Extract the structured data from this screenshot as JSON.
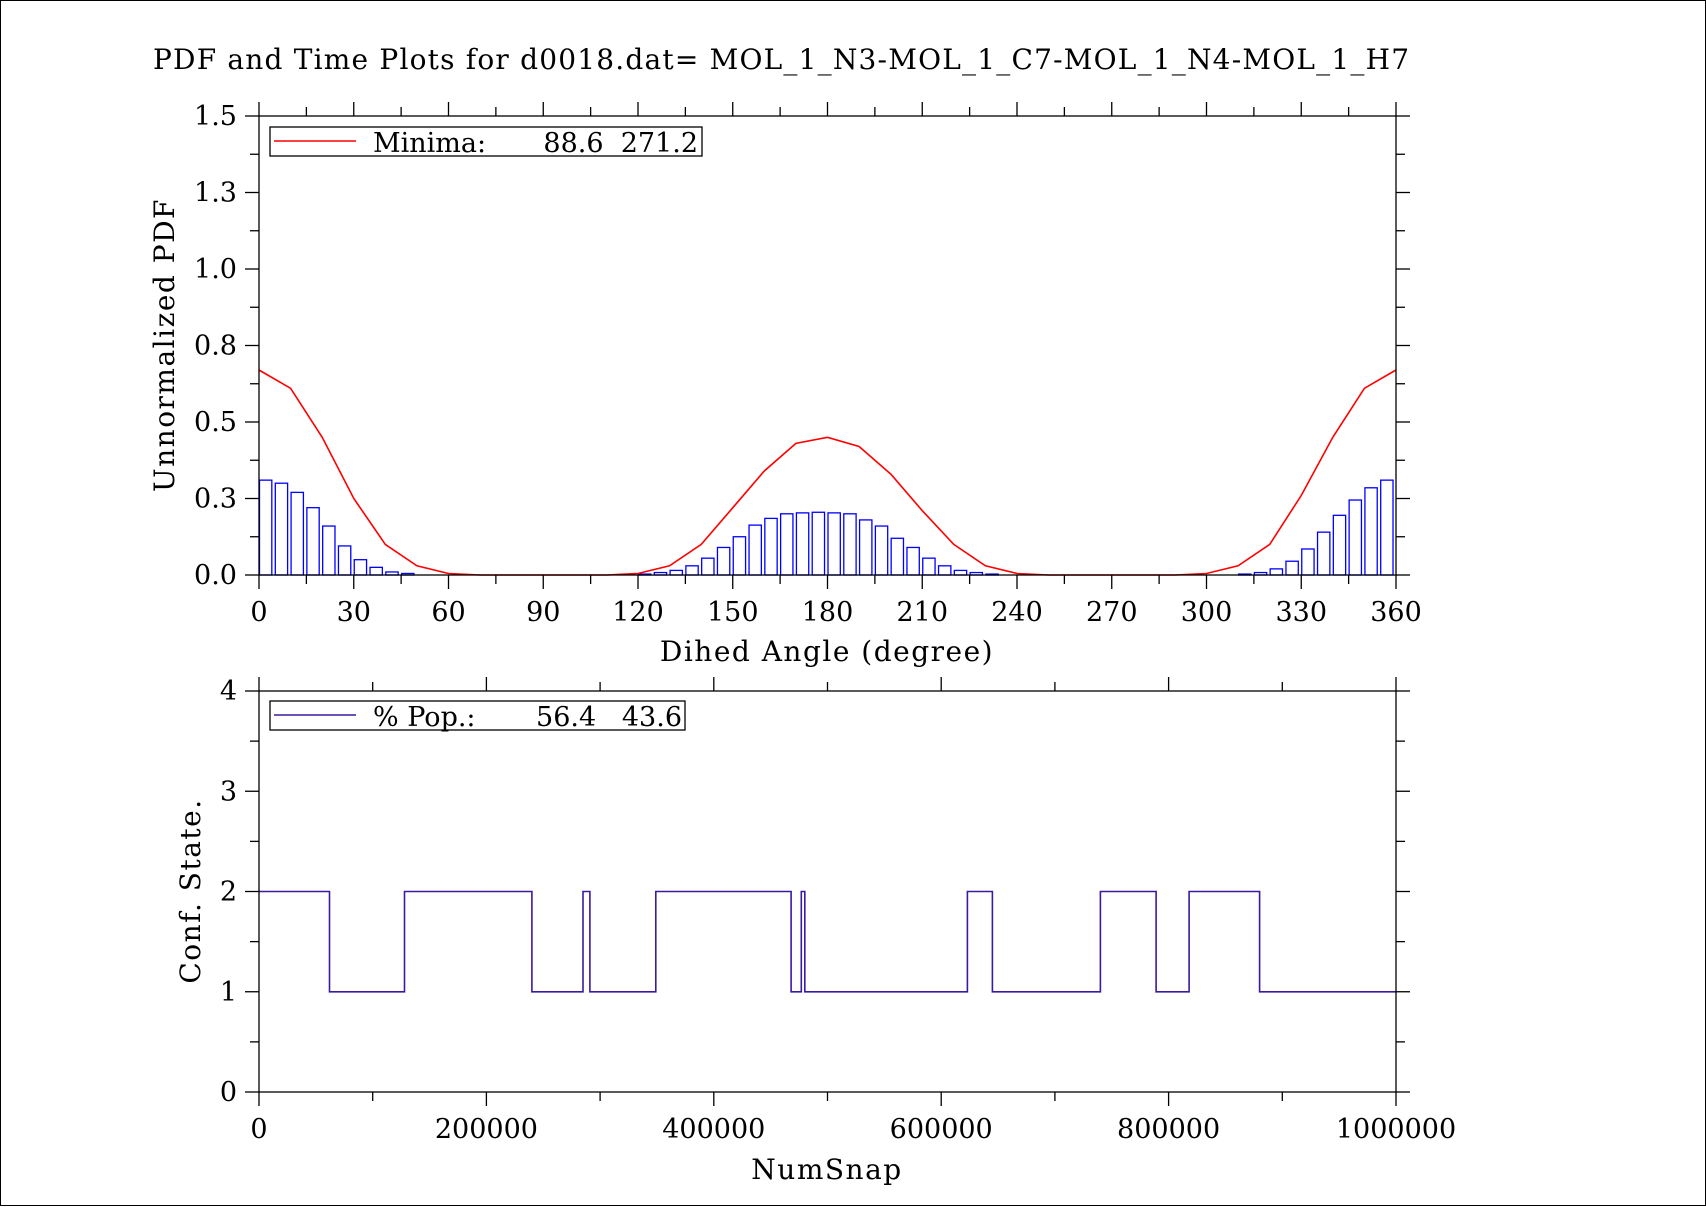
{
  "title": "PDF and Time Plots for d0018.dat=  MOL_1_N3-MOL_1_C7-MOL_1_N4-MOL_1_H7",
  "colors": {
    "pdf_curve": "#ff0000",
    "histogram": "#0000ff",
    "state_line": "#3a1aa0",
    "axes": "#000000"
  },
  "chart_data": [
    {
      "type": "bar",
      "xlabel": "Dihed Angle (degree)",
      "ylabel": "Unnormalized PDF",
      "xlim": [
        0,
        360
      ],
      "ylim": [
        0,
        1.5
      ],
      "xticks": [
        "0",
        "30",
        "60",
        "90",
        "120",
        "150",
        "180",
        "210",
        "240",
        "270",
        "300",
        "330",
        "360"
      ],
      "yticks": [
        "0.0",
        "0.3",
        "0.5",
        "0.8",
        "1.0",
        "1.3",
        "1.5"
      ],
      "legend": {
        "label": "Minima:",
        "values": "88.6  271.2",
        "placement": "top-left"
      },
      "histogram": {
        "bin_width": 5,
        "x": [
          0,
          5,
          10,
          15,
          20,
          25,
          30,
          35,
          40,
          45,
          50,
          55,
          60,
          65,
          70,
          75,
          80,
          85,
          90,
          95,
          100,
          105,
          110,
          115,
          120,
          125,
          130,
          135,
          140,
          145,
          150,
          155,
          160,
          165,
          170,
          175,
          180,
          185,
          190,
          195,
          200,
          205,
          210,
          215,
          220,
          225,
          230,
          235,
          240,
          245,
          250,
          255,
          260,
          265,
          270,
          275,
          280,
          285,
          290,
          295,
          300,
          305,
          310,
          315,
          320,
          325,
          330,
          335,
          340,
          345,
          350,
          355
        ],
        "values": [
          0.31,
          0.3,
          0.27,
          0.22,
          0.16,
          0.095,
          0.05,
          0.025,
          0.01,
          0.005,
          0,
          0,
          0,
          0,
          0,
          0,
          0,
          0,
          0,
          0,
          0,
          0,
          0,
          0,
          0.003,
          0.008,
          0.015,
          0.03,
          0.055,
          0.09,
          0.125,
          0.163,
          0.185,
          0.2,
          0.203,
          0.205,
          0.203,
          0.2,
          0.18,
          0.16,
          0.12,
          0.09,
          0.055,
          0.03,
          0.015,
          0.008,
          0.003,
          0,
          0,
          0,
          0,
          0,
          0,
          0,
          0,
          0,
          0,
          0,
          0,
          0,
          0,
          0,
          0.003,
          0.008,
          0.02,
          0.045,
          0.085,
          0.14,
          0.195,
          0.245,
          0.285,
          0.31
        ]
      },
      "pdf_curve": {
        "x": [
          0,
          10,
          20,
          30,
          40,
          50,
          60,
          70,
          80,
          90,
          100,
          110,
          120,
          130,
          140,
          150,
          160,
          170,
          180,
          190,
          200,
          210,
          220,
          230,
          240,
          250,
          260,
          270,
          280,
          290,
          300,
          310,
          320,
          330,
          340,
          350,
          360
        ],
        "y": [
          0.67,
          0.61,
          0.45,
          0.25,
          0.1,
          0.03,
          0.005,
          0,
          0,
          0,
          0,
          0,
          0.005,
          0.03,
          0.1,
          0.22,
          0.34,
          0.43,
          0.45,
          0.42,
          0.33,
          0.21,
          0.1,
          0.03,
          0.005,
          0,
          0,
          0,
          0,
          0,
          0.005,
          0.03,
          0.1,
          0.26,
          0.45,
          0.61,
          0.67
        ]
      }
    },
    {
      "type": "line",
      "xlabel": "NumSnap",
      "ylabel": "Conf. State.",
      "xlim": [
        0,
        1000000
      ],
      "ylim": [
        0,
        4
      ],
      "xticks": [
        "0",
        "200000",
        "400000",
        "600000",
        "800000",
        "1000000"
      ],
      "yticks": [
        "0",
        "1",
        "2",
        "3",
        "4"
      ],
      "legend": {
        "label": "% Pop.:",
        "values": "56.4   43.6",
        "placement": "top-left"
      },
      "series": [
        {
          "x": [
            0,
            62000,
            62000,
            128000,
            128000,
            240000,
            240000,
            285000,
            285000,
            291000,
            291000,
            349000,
            349000,
            468000,
            468000,
            477000,
            477000,
            480000,
            480000,
            623000,
            623000,
            645000,
            645000,
            740000,
            740000,
            789000,
            789000,
            818000,
            818000,
            880000,
            880000,
            1000000
          ],
          "y": [
            2,
            2,
            1,
            1,
            2,
            2,
            1,
            1,
            2,
            2,
            1,
            1,
            2,
            2,
            1,
            1,
            2,
            2,
            1,
            1,
            2,
            2,
            1,
            1,
            2,
            2,
            1,
            1,
            2,
            2,
            1,
            1
          ]
        }
      ]
    }
  ]
}
